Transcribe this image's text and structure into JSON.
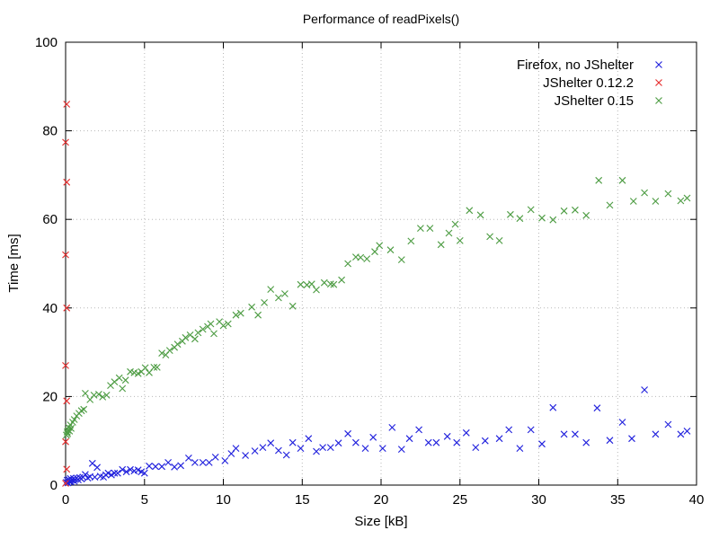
{
  "chart_data": {
    "type": "scatter",
    "title": "Performance of readPixels()",
    "xlabel": "Size [kB]",
    "ylabel": "Time [ms]",
    "xlim": [
      0,
      40
    ],
    "ylim": [
      0,
      100
    ],
    "x_ticks": [
      0,
      5,
      10,
      15,
      20,
      25,
      30,
      35,
      40
    ],
    "y_ticks": [
      0,
      20,
      40,
      60,
      80,
      100
    ],
    "grid": "dotted-major",
    "legend_position": "top-right-inside",
    "marker": "x",
    "background_color": "#ffffff",
    "series": [
      {
        "name": "Firefox, no JShelter",
        "color": "#2222dd",
        "marker": "x",
        "points": [
          [
            0.05,
            0.6
          ],
          [
            0.1,
            1.1
          ],
          [
            0.15,
            0.5
          ],
          [
            0.2,
            1.3
          ],
          [
            0.25,
            0.8
          ],
          [
            0.3,
            1.5
          ],
          [
            0.35,
            0.7
          ],
          [
            0.4,
            1.1
          ],
          [
            0.5,
            1.5
          ],
          [
            0.55,
            0.9
          ],
          [
            0.6,
            1.3
          ],
          [
            0.7,
            1.6
          ],
          [
            0.8,
            1.2
          ],
          [
            0.9,
            1.7
          ],
          [
            1.0,
            1.4
          ],
          [
            1.1,
            1.8
          ],
          [
            1.25,
            2.4
          ],
          [
            1.4,
            1.6
          ],
          [
            1.55,
            1.9
          ],
          [
            1.7,
            4.9
          ],
          [
            1.85,
            1.8
          ],
          [
            2.0,
            4.0
          ],
          [
            2.2,
            2.0
          ],
          [
            2.4,
            1.8
          ],
          [
            2.55,
            2.3
          ],
          [
            2.7,
            2.7
          ],
          [
            2.9,
            2.3
          ],
          [
            3.1,
            2.7
          ],
          [
            3.3,
            2.7
          ],
          [
            3.6,
            3.5
          ],
          [
            3.85,
            3.0
          ],
          [
            4.1,
            3.5
          ],
          [
            4.35,
            3.2
          ],
          [
            4.6,
            3.4
          ],
          [
            4.8,
            3.0
          ],
          [
            5.0,
            2.7
          ],
          [
            5.3,
            4.3
          ],
          [
            5.7,
            4.2
          ],
          [
            6.1,
            4.2
          ],
          [
            6.5,
            5.1
          ],
          [
            6.9,
            4.1
          ],
          [
            7.3,
            4.4
          ],
          [
            7.8,
            6.1
          ],
          [
            8.2,
            5.1
          ],
          [
            8.7,
            5.1
          ],
          [
            9.1,
            5.1
          ],
          [
            9.5,
            6.3
          ],
          [
            10.1,
            5.5
          ],
          [
            10.5,
            7.1
          ],
          [
            10.8,
            8.3
          ],
          [
            11.4,
            6.7
          ],
          [
            12.0,
            7.7
          ],
          [
            12.5,
            8.5
          ],
          [
            13.0,
            9.5
          ],
          [
            13.5,
            7.8
          ],
          [
            14.0,
            6.8
          ],
          [
            14.4,
            9.6
          ],
          [
            14.9,
            8.3
          ],
          [
            15.4,
            10.5
          ],
          [
            15.9,
            7.6
          ],
          [
            16.3,
            8.5
          ],
          [
            16.8,
            8.5
          ],
          [
            17.3,
            9.5
          ],
          [
            17.9,
            11.6
          ],
          [
            18.4,
            9.6
          ],
          [
            19.0,
            8.3
          ],
          [
            19.5,
            10.8
          ],
          [
            20.1,
            8.3
          ],
          [
            20.7,
            13.0
          ],
          [
            21.3,
            8.1
          ],
          [
            21.8,
            10.5
          ],
          [
            22.4,
            12.5
          ],
          [
            23.0,
            9.6
          ],
          [
            23.5,
            9.6
          ],
          [
            24.2,
            11.0
          ],
          [
            24.8,
            9.6
          ],
          [
            25.4,
            11.8
          ],
          [
            26.0,
            8.5
          ],
          [
            26.6,
            10.0
          ],
          [
            27.5,
            10.5
          ],
          [
            28.1,
            12.5
          ],
          [
            28.8,
            8.3
          ],
          [
            29.5,
            12.5
          ],
          [
            30.2,
            9.3
          ],
          [
            30.9,
            17.5
          ],
          [
            31.6,
            11.5
          ],
          [
            32.3,
            11.5
          ],
          [
            33.0,
            9.6
          ],
          [
            33.7,
            17.4
          ],
          [
            34.5,
            10.1
          ],
          [
            35.3,
            14.2
          ],
          [
            35.9,
            10.5
          ],
          [
            36.7,
            21.5
          ],
          [
            37.4,
            11.5
          ],
          [
            38.2,
            13.7
          ],
          [
            39.0,
            11.5
          ],
          [
            39.4,
            12.2
          ]
        ]
      },
      {
        "name": "JShelter 0.12.2",
        "color": "#e62e2e",
        "marker": "x",
        "points": [
          [
            0.0,
            0.4
          ],
          [
            0.07,
            3.6
          ],
          [
            0.0,
            9.8
          ],
          [
            0.07,
            19.0
          ],
          [
            0.0,
            27.0
          ],
          [
            0.07,
            40.0
          ],
          [
            0.0,
            52.0
          ],
          [
            0.07,
            68.4
          ],
          [
            0.0,
            77.4
          ],
          [
            0.07,
            86.0
          ]
        ]
      },
      {
        "name": "JShelter 0.15",
        "color": "#4f9d45",
        "marker": "x",
        "points": [
          [
            0.05,
            11.3
          ],
          [
            0.1,
            12.0
          ],
          [
            0.12,
            11.6
          ],
          [
            0.15,
            12.4
          ],
          [
            0.2,
            13.0
          ],
          [
            0.25,
            12.2
          ],
          [
            0.3,
            13.6
          ],
          [
            0.35,
            12.8
          ],
          [
            0.45,
            14.2
          ],
          [
            0.55,
            14.8
          ],
          [
            0.7,
            15.6
          ],
          [
            0.85,
            16.2
          ],
          [
            1.0,
            16.8
          ],
          [
            1.15,
            17.1
          ],
          [
            1.25,
            20.7
          ],
          [
            1.55,
            19.3
          ],
          [
            1.8,
            20.3
          ],
          [
            2.1,
            20.5
          ],
          [
            2.35,
            19.9
          ],
          [
            2.6,
            20.3
          ],
          [
            2.85,
            22.5
          ],
          [
            3.1,
            23.3
          ],
          [
            3.4,
            24.2
          ],
          [
            3.6,
            21.8
          ],
          [
            3.8,
            23.7
          ],
          [
            4.1,
            25.6
          ],
          [
            4.35,
            25.4
          ],
          [
            4.6,
            25.2
          ],
          [
            4.8,
            25.6
          ],
          [
            5.05,
            26.5
          ],
          [
            5.3,
            25.4
          ],
          [
            5.6,
            26.6
          ],
          [
            5.8,
            26.6
          ],
          [
            6.1,
            29.8
          ],
          [
            6.35,
            29.4
          ],
          [
            6.6,
            30.4
          ],
          [
            6.9,
            31.1
          ],
          [
            7.1,
            31.8
          ],
          [
            7.4,
            32.5
          ],
          [
            7.6,
            33.3
          ],
          [
            7.9,
            33.9
          ],
          [
            8.2,
            33.0
          ],
          [
            8.4,
            34.4
          ],
          [
            8.7,
            35.2
          ],
          [
            9.0,
            35.8
          ],
          [
            9.2,
            36.4
          ],
          [
            9.4,
            34.2
          ],
          [
            9.75,
            36.9
          ],
          [
            10.0,
            36.0
          ],
          [
            10.3,
            36.4
          ],
          [
            10.8,
            38.4
          ],
          [
            11.1,
            38.8
          ],
          [
            11.8,
            40.2
          ],
          [
            12.2,
            38.4
          ],
          [
            12.6,
            41.2
          ],
          [
            13.0,
            44.2
          ],
          [
            13.5,
            42.3
          ],
          [
            13.9,
            43.2
          ],
          [
            14.4,
            40.4
          ],
          [
            14.9,
            45.3
          ],
          [
            15.3,
            45.2
          ],
          [
            15.6,
            45.4
          ],
          [
            15.9,
            44.1
          ],
          [
            16.4,
            45.7
          ],
          [
            16.8,
            45.4
          ],
          [
            17.0,
            45.3
          ],
          [
            17.5,
            46.3
          ],
          [
            17.9,
            50.0
          ],
          [
            18.4,
            51.5
          ],
          [
            18.7,
            51.4
          ],
          [
            19.1,
            51.1
          ],
          [
            19.6,
            52.7
          ],
          [
            19.9,
            54.1
          ],
          [
            20.6,
            53.1
          ],
          [
            21.3,
            50.9
          ],
          [
            21.9,
            55.1
          ],
          [
            22.5,
            58.0
          ],
          [
            23.1,
            58.0
          ],
          [
            23.8,
            54.3
          ],
          [
            24.3,
            56.9
          ],
          [
            24.7,
            58.9
          ],
          [
            25.0,
            55.2
          ],
          [
            25.6,
            62.0
          ],
          [
            26.3,
            61.0
          ],
          [
            26.9,
            56.1
          ],
          [
            27.5,
            55.2
          ],
          [
            28.2,
            61.1
          ],
          [
            28.8,
            60.2
          ],
          [
            29.5,
            62.2
          ],
          [
            30.2,
            60.3
          ],
          [
            30.9,
            59.9
          ],
          [
            31.6,
            61.9
          ],
          [
            32.3,
            62.1
          ],
          [
            33.0,
            60.9
          ],
          [
            33.8,
            68.8
          ],
          [
            34.5,
            63.2
          ],
          [
            35.3,
            68.8
          ],
          [
            36.0,
            64.1
          ],
          [
            36.7,
            66.0
          ],
          [
            37.4,
            64.1
          ],
          [
            38.2,
            65.8
          ],
          [
            39.0,
            64.2
          ],
          [
            39.4,
            64.8
          ]
        ]
      }
    ]
  }
}
